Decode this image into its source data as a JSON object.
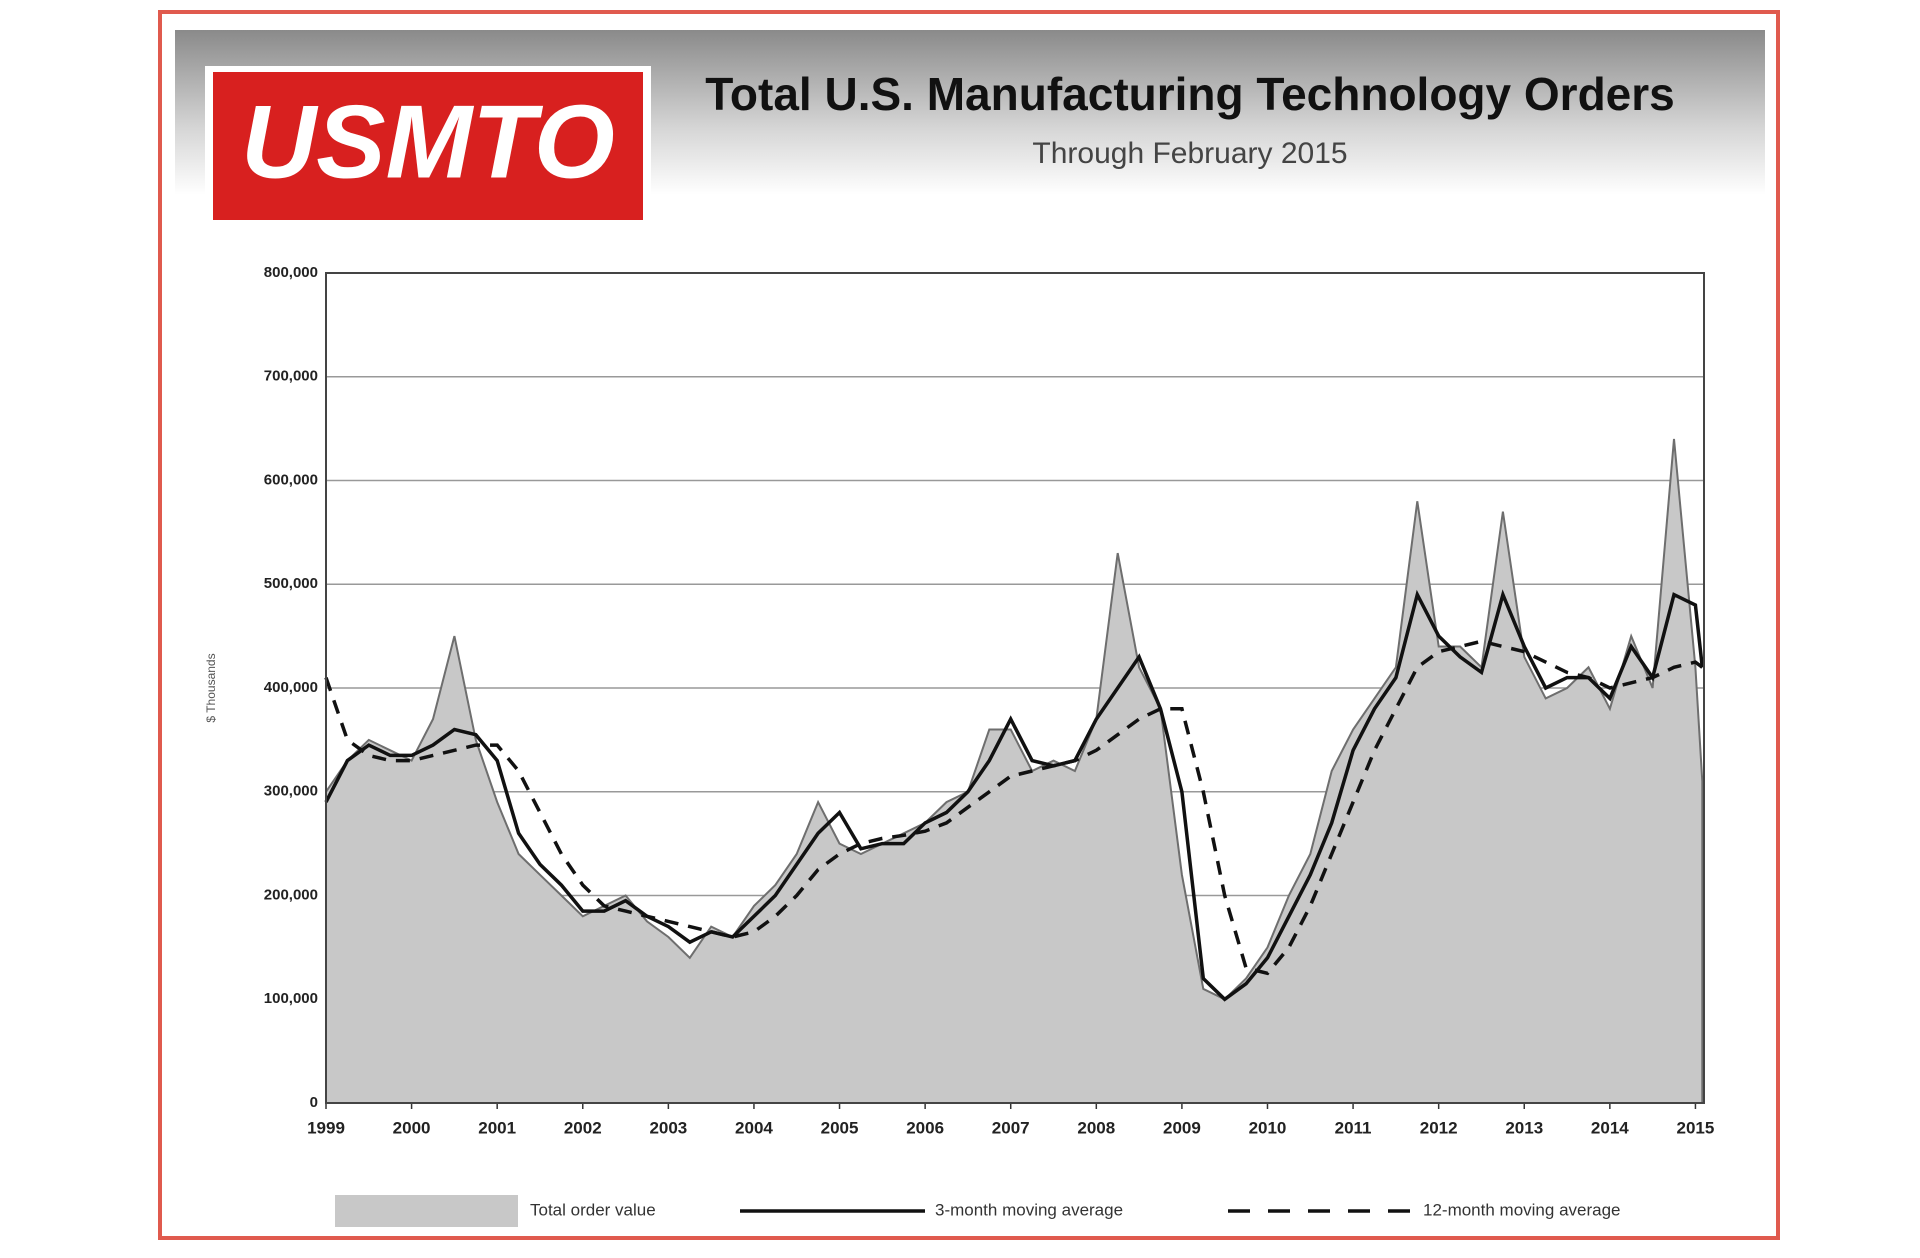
{
  "logo": "USMTO",
  "chart_data": {
    "type": "area",
    "title": "Total U.S. Manufacturing Technology Orders",
    "subtitle": "Through February 2015",
    "y_label": "$ Thousands",
    "x": [
      1999,
      1999.25,
      1999.5,
      1999.75,
      2000,
      2000.25,
      2000.5,
      2000.75,
      2001,
      2001.25,
      2001.5,
      2001.75,
      2002,
      2002.25,
      2002.5,
      2002.75,
      2003,
      2003.25,
      2003.5,
      2003.75,
      2004,
      2004.25,
      2004.5,
      2004.75,
      2005,
      2005.25,
      2005.5,
      2005.75,
      2006,
      2006.25,
      2006.5,
      2006.75,
      2007,
      2007.25,
      2007.5,
      2007.75,
      2008,
      2008.25,
      2008.5,
      2008.75,
      2009,
      2009.25,
      2009.5,
      2009.75,
      2010,
      2010.25,
      2010.5,
      2010.75,
      2011,
      2011.25,
      2011.5,
      2011.75,
      2012,
      2012.25,
      2012.5,
      2012.75,
      2013,
      2013.25,
      2013.5,
      2013.75,
      2014,
      2014.25,
      2014.5,
      2014.75,
      2015,
      2015.08
    ],
    "series": [
      {
        "name": "Total order value",
        "kind": "area",
        "color": "#c8c8c8",
        "stroke": "#6e6e6e",
        "dashed": false,
        "values": [
          300000,
          330000,
          350000,
          340000,
          330000,
          370000,
          450000,
          350000,
          290000,
          240000,
          220000,
          200000,
          180000,
          190000,
          200000,
          175000,
          160000,
          140000,
          170000,
          160000,
          190000,
          210000,
          240000,
          290000,
          250000,
          240000,
          250000,
          260000,
          270000,
          290000,
          300000,
          360000,
          360000,
          320000,
          330000,
          320000,
          370000,
          530000,
          420000,
          380000,
          220000,
          110000,
          100000,
          120000,
          150000,
          200000,
          240000,
          320000,
          360000,
          390000,
          420000,
          580000,
          440000,
          440000,
          420000,
          570000,
          430000,
          390000,
          400000,
          420000,
          380000,
          450000,
          400000,
          640000,
          420000,
          310000
        ]
      },
      {
        "name": "3-month moving average",
        "kind": "line",
        "color": "#111111",
        "dashed": false,
        "values": [
          290000,
          330000,
          345000,
          335000,
          335000,
          345000,
          360000,
          355000,
          330000,
          260000,
          230000,
          210000,
          185000,
          185000,
          195000,
          180000,
          170000,
          155000,
          165000,
          160000,
          180000,
          200000,
          230000,
          260000,
          280000,
          245000,
          250000,
          250000,
          270000,
          280000,
          300000,
          330000,
          370000,
          330000,
          325000,
          330000,
          370000,
          400000,
          430000,
          380000,
          300000,
          120000,
          100000,
          115000,
          140000,
          180000,
          220000,
          270000,
          340000,
          380000,
          410000,
          490000,
          450000,
          430000,
          415000,
          490000,
          440000,
          400000,
          410000,
          410000,
          390000,
          440000,
          410000,
          490000,
          480000,
          420000
        ]
      },
      {
        "name": "12-month moving average",
        "kind": "line",
        "color": "#111111",
        "dashed": true,
        "values": [
          410000,
          350000,
          335000,
          330000,
          330000,
          335000,
          340000,
          345000,
          345000,
          320000,
          280000,
          240000,
          210000,
          190000,
          185000,
          180000,
          175000,
          170000,
          165000,
          160000,
          165000,
          180000,
          200000,
          225000,
          240000,
          250000,
          255000,
          258000,
          262000,
          270000,
          285000,
          300000,
          315000,
          320000,
          325000,
          330000,
          340000,
          355000,
          370000,
          380000,
          380000,
          300000,
          200000,
          130000,
          125000,
          150000,
          190000,
          240000,
          290000,
          340000,
          380000,
          420000,
          435000,
          440000,
          445000,
          440000,
          435000,
          425000,
          415000,
          410000,
          400000,
          405000,
          410000,
          420000,
          425000,
          420000
        ]
      }
    ],
    "xlim": [
      1999,
      2015.1
    ],
    "xticks": [
      1999,
      2000,
      2001,
      2002,
      2003,
      2004,
      2005,
      2006,
      2007,
      2008,
      2009,
      2010,
      2011,
      2012,
      2013,
      2014,
      2015
    ],
    "ylim": [
      0,
      800000
    ],
    "yticks": [
      0,
      {
        "value": 100000,
        "label": "100,000"
      },
      {
        "value": 200000,
        "label": "200,000"
      },
      {
        "value": 300000,
        "label": "300,000"
      },
      {
        "value": 400000,
        "label": "400,000"
      },
      {
        "value": 500000,
        "label": "500,000"
      },
      {
        "value": 600000,
        "label": "600,000"
      },
      {
        "value": 700000,
        "label": "700,000"
      },
      {
        "value": 800000,
        "label": "800,000"
      }
    ],
    "grid": true
  }
}
